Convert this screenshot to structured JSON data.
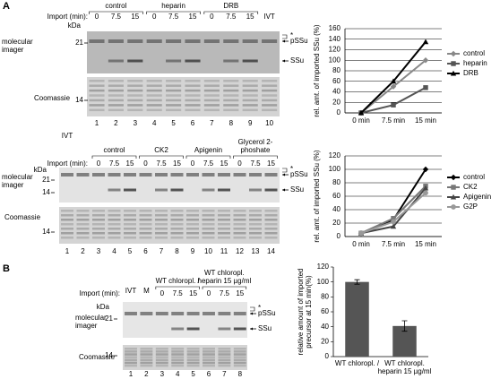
{
  "figure": {
    "gels": [
      {
        "panel": "A",
        "import_label": "Import (min):",
        "groups": [
          "control",
          "heparin",
          "DRB"
        ],
        "lane_labels": [
          "IVT"
        ],
        "times": [
          "0",
          "7.5",
          "15",
          "0",
          "7.5",
          "15",
          "0",
          "7.5",
          "15"
        ],
        "lanes": [
          1,
          2,
          3,
          4,
          5,
          6,
          7,
          8,
          9,
          10
        ],
        "kda": "kDa",
        "markers": [
          21,
          14
        ],
        "imager_label": "molecular imager",
        "stain_label": "Coomassie",
        "star": "*",
        "bands": [
          "pSSu",
          "SSu"
        ]
      },
      {
        "import_label": "Import (min):",
        "groups": [
          "control",
          "CK2",
          "Apigenin",
          "Glycerol 2-phoshate"
        ],
        "lane_labels": [
          "IVT"
        ],
        "times": [
          "0",
          "7.5",
          "15",
          "0",
          "7.5",
          "15",
          "0",
          "7.5",
          "15",
          "0",
          "7.5",
          "15"
        ],
        "lanes": [
          1,
          2,
          3,
          4,
          5,
          6,
          7,
          8,
          9,
          10,
          11,
          12,
          13,
          14
        ],
        "kda": "kDa",
        "markers": [
          21,
          14,
          14
        ],
        "imager_label": "molecular imager",
        "stain_label": "Coomassie",
        "star": "*",
        "bands": [
          "pSSu",
          "SSu"
        ]
      },
      {
        "panel": "B",
        "import_label": "Import (min):",
        "groups": [
          "WT chloropl. /",
          "WT chloropl. heparin 15 µg/ml"
        ],
        "lane_labels": [
          "IVT",
          "M"
        ],
        "times": [
          "0",
          "7.5",
          "15",
          "0",
          "7.5",
          "15"
        ],
        "lanes": [
          1,
          2,
          3,
          4,
          5,
          6,
          7,
          8
        ],
        "kda": "kDa",
        "markers": [
          21,
          14
        ],
        "imager_label": "molecular imager",
        "stain_label": "Coomassie",
        "star": "*",
        "bands": [
          "pSSu",
          "SSu"
        ]
      }
    ]
  },
  "chart_data": [
    {
      "type": "line",
      "y_label": "rel. amt. of imported SSu (%)",
      "categories": [
        "0 min",
        "7.5 min",
        "15 min"
      ],
      "ylim": [
        0,
        160
      ],
      "yticks": [
        0,
        20,
        40,
        60,
        80,
        100,
        120,
        140,
        160
      ],
      "grid": true,
      "legend": "right",
      "series": [
        {
          "name": "control",
          "color": "#888888",
          "marker": "diamond",
          "values": [
            0,
            50,
            100
          ]
        },
        {
          "name": "heparin",
          "color": "#555555",
          "marker": "square",
          "values": [
            0,
            15,
            48
          ]
        },
        {
          "name": "DRB",
          "color": "#000000",
          "marker": "triangle",
          "values": [
            0,
            60,
            135
          ]
        }
      ]
    },
    {
      "type": "line",
      "y_label": "rel. amt. of imported SSu (%)",
      "categories": [
        "0 min",
        "7.5 min",
        "15 min"
      ],
      "ylim": [
        0,
        120
      ],
      "yticks": [
        0,
        20,
        40,
        60,
        80,
        100,
        120
      ],
      "grid": true,
      "legend": "right",
      "series": [
        {
          "name": "control",
          "color": "#000000",
          "marker": "diamond",
          "values": [
            5,
            25,
            100
          ]
        },
        {
          "name": "CK2",
          "color": "#777777",
          "marker": "square",
          "values": [
            5,
            27,
            75
          ]
        },
        {
          "name": "Apigenin",
          "color": "#444444",
          "marker": "triangle",
          "values": [
            5,
            15,
            72
          ]
        },
        {
          "name": "G2P",
          "color": "#999999",
          "marker": "circle",
          "values": [
            5,
            22,
            65
          ]
        }
      ]
    },
    {
      "type": "bar",
      "y_label": "relative amount of imported precursor at 15 min(%)",
      "categories": [
        "WT chloropl. /",
        "WT chloropl. heparin 15 µg/ml"
      ],
      "values": [
        100,
        41
      ],
      "errors": [
        3,
        7
      ],
      "color": "#555555",
      "ylim": [
        0,
        120
      ],
      "yticks": [
        0,
        20,
        40,
        60,
        80,
        100,
        120
      ],
      "grid": false
    }
  ]
}
